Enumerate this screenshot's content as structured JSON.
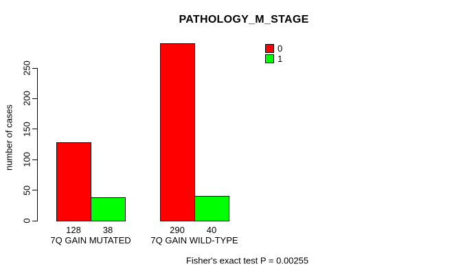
{
  "chart_data": {
    "type": "bar",
    "title": "PATHOLOGY_M_STAGE",
    "xlabel": "",
    "ylabel": "number of cases",
    "categories": [
      "7Q GAIN MUTATED",
      "7Q GAIN WILD-TYPE"
    ],
    "series": [
      {
        "name": "0",
        "color": "#FF0000",
        "values": [
          128,
          290
        ]
      },
      {
        "name": "1",
        "color": "#00FF00",
        "values": [
          38,
          40
        ]
      }
    ],
    "bar_value_labels": [
      [
        128,
        38
      ],
      [
        290,
        40
      ]
    ],
    "yticks": [
      0,
      50,
      100,
      150,
      200,
      250
    ],
    "ylim": [
      0,
      295
    ],
    "grid": false,
    "legend_position": "top-right",
    "bar_border_color": "#000000",
    "annotation": "Fisher's exact test P = 0.00255"
  }
}
